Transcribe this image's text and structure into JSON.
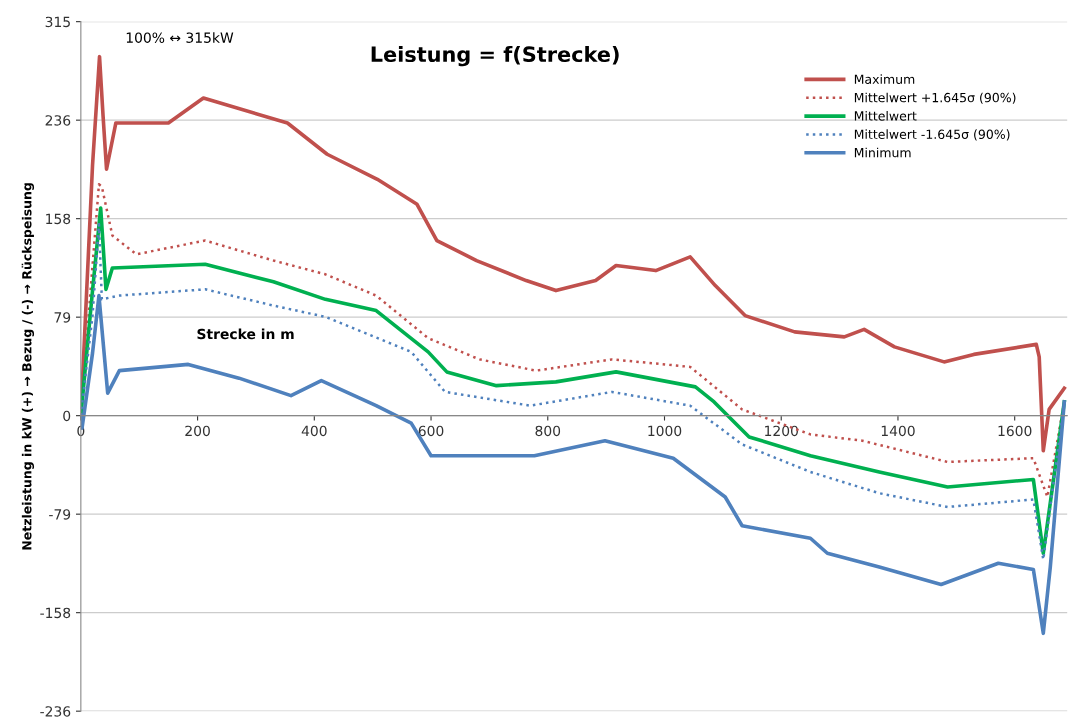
{
  "chart_data": {
    "type": "line",
    "title": "Leistung = f(Strecke)",
    "xlabel": "Strecke in m",
    "ylabel": "Netzleistung in kW (+) → Bezug / (-) → Rückspeisung",
    "annotations": [
      "100% ↔ 315kW"
    ],
    "xlim": [
      0,
      1690
    ],
    "xticks": [
      0,
      200,
      400,
      600,
      800,
      1000,
      1200,
      1400,
      1600
    ],
    "ylim": [
      -236.25,
      315
    ],
    "yticks": [
      {
        "value": -236.25,
        "label": "-236"
      },
      {
        "value": -157.5,
        "label": "-158"
      },
      {
        "value": -78.75,
        "label": "-79"
      },
      0,
      {
        "value": 78.75,
        "label": "79"
      },
      {
        "value": 157.5,
        "label": "158"
      },
      {
        "value": 236.25,
        "label": "236"
      },
      315
    ],
    "grid": "y",
    "legend": "top right",
    "marker": "none",
    "series": [
      {
        "name": "Maximum",
        "color": "#c0504d",
        "line_style": "solid",
        "x": [
          0,
          20,
          32,
          38,
          44,
          60,
          150,
          210,
          354,
          422,
          508,
          576,
          610,
          678,
          763,
          814,
          882,
          917,
          985,
          1044,
          1087,
          1138,
          1223,
          1308,
          1342,
          1394,
          1479,
          1530,
          1637,
          1642,
          1649,
          1659,
          1685
        ],
        "values": [
          0,
          200,
          287,
          240,
          197,
          234,
          234,
          254,
          234,
          209,
          189,
          169,
          140,
          124,
          108,
          100,
          108,
          120,
          116,
          127,
          104,
          80,
          67,
          63,
          69,
          55,
          43,
          49,
          57,
          47,
          -28,
          5,
          22
        ]
      },
      {
        "name": "Mittelwert +1.645σ (90%)",
        "color": "#c0504d",
        "line_style": "dotted",
        "x": [
          0,
          20,
          31,
          36,
          54,
          95,
          213,
          330,
          419,
          506,
          595,
          683,
          780,
          910,
          1044,
          1133,
          1250,
          1339,
          1485,
          1632,
          1656,
          1685
        ],
        "values": [
          0,
          120,
          185,
          183,
          144,
          129,
          140,
          124,
          113,
          96,
          62,
          45,
          36,
          45,
          39,
          5,
          -15,
          -20,
          -37,
          -34,
          -65,
          11
        ]
      },
      {
        "name": "Mittelwert",
        "color": "#00b050",
        "line_style": "solid",
        "x": [
          0,
          20,
          34,
          43,
          54,
          213,
          330,
          419,
          506,
          595,
          627,
          712,
          814,
          917,
          1053,
          1085,
          1145,
          1250,
          1368,
          1485,
          1632,
          1649,
          1685
        ],
        "values": [
          0,
          100,
          166,
          101,
          118,
          121,
          107,
          93,
          84,
          51,
          35,
          24,
          27,
          35,
          23,
          11,
          -17,
          -32,
          -45,
          -57,
          -51,
          -110,
          11
        ]
      },
      {
        "name": "Mittelwert -1.645σ (90%)",
        "color": "#4f81bd",
        "line_style": "dotted",
        "x": [
          0,
          20,
          31,
          36,
          65,
          213,
          330,
          419,
          566,
          624,
          770,
          910,
          1044,
          1133,
          1250,
          1368,
          1485,
          1632,
          1649,
          1685
        ],
        "values": [
          0,
          80,
          153,
          93,
          96,
          101,
          88,
          79,
          51,
          19,
          8,
          19,
          8,
          -23,
          -45,
          -62,
          -73,
          -67,
          -115,
          11
        ]
      },
      {
        "name": "Minimum",
        "color": "#4f81bd",
        "line_style": "solid",
        "x": [
          0,
          2,
          20,
          31,
          46,
          66,
          184,
          271,
          360,
          412,
          506,
          566,
          600,
          683,
          777,
          898,
          1015,
          1104,
          1133,
          1250,
          1279,
          1368,
          1474,
          1572,
          1632,
          1649,
          1661,
          1685
        ],
        "values": [
          0,
          -10,
          50,
          96,
          18,
          36,
          41,
          30,
          16,
          28,
          8,
          -6,
          -32,
          -32,
          -32,
          -20,
          -34,
          -65,
          -88,
          -98,
          -110,
          -121,
          -135,
          -118,
          -123,
          -174,
          -121,
          11
        ]
      }
    ]
  }
}
